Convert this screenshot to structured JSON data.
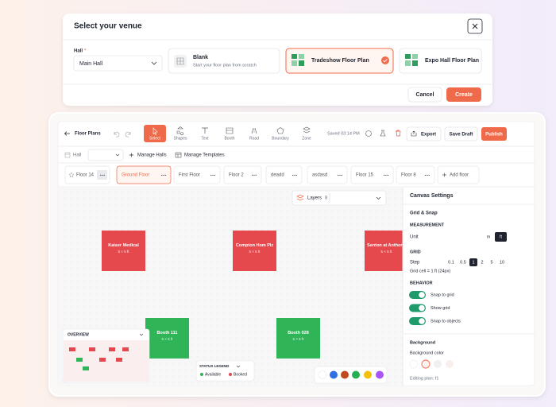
{
  "modal": {
    "title": "Select your venue",
    "hall_label": "Hall",
    "required_mark": "*",
    "hall_value": "Main Hall",
    "options": [
      {
        "title": "Blank",
        "subtitle": "Start your floor plan from scratch"
      },
      {
        "title": "Tradeshow Floor Plan"
      },
      {
        "title": "Expo Hall Floor Plan"
      }
    ],
    "cancel": "Cancel",
    "create": "Create"
  },
  "toolbar": {
    "back_label": "Floor Plans",
    "tools": [
      "Select",
      "Shapes",
      "Text",
      "Booth",
      "Road",
      "Boundary",
      "Zone"
    ],
    "saved": "Saved 03:14 PM",
    "export": "Export",
    "save_draft": "Save Draft",
    "publish": "Publish"
  },
  "hall_bar": {
    "label": "Hall",
    "manage_halls": "Manage Halls",
    "manage_templates": "Manage Templates"
  },
  "floors": {
    "tabs": [
      "Floor 14",
      "Ground Floor",
      "First Floor",
      "Floor 2",
      "deadd",
      "asdasd",
      "Floor 15",
      "Floor 8"
    ],
    "add": "Add floor"
  },
  "canvas": {
    "layers_label": "Layers",
    "layers_count": 8,
    "booths": [
      {
        "name": "Kaiser Medical",
        "size": "5 × 5 ft"
      },
      {
        "name": "Compton Hom Plz",
        "size": "5 × 5 ft"
      },
      {
        "name": "Senton at Anthony",
        "size": "5 × 5 ft"
      },
      {
        "name": "Booth 111",
        "size": "5 × 5 ft"
      },
      {
        "name": "Booth 028",
        "size": "5 × 5 ft"
      }
    ],
    "overview": "OVERVIEW",
    "legend": {
      "title": "STATUS LEGEND",
      "items": [
        "Available",
        "Booked"
      ]
    }
  },
  "settings": {
    "title": "Canvas Settings",
    "section": "Grid & Snap",
    "measurement": "MEASUREMENT",
    "unit_label": "Unit",
    "units": [
      "m",
      "ft"
    ],
    "grid": "GRID",
    "step_label": "Step",
    "steps": [
      0.1,
      0.5,
      1,
      2,
      5,
      10
    ],
    "grid_cell": "Grid cell = 1 ft (24px)",
    "behavior": "BEHAVIOR",
    "toggles": [
      "Snap to grid",
      "Show grid",
      "Snap to objects"
    ],
    "background": "Background",
    "background_color": "Background color",
    "editing": "Editing plan: f1"
  }
}
